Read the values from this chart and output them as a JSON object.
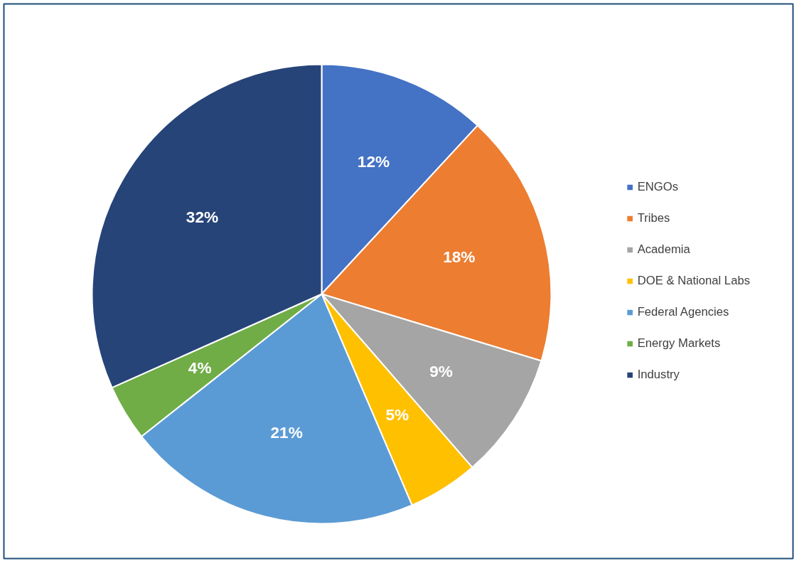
{
  "chart_data": {
    "type": "pie",
    "categories": [
      "ENGOs",
      "Tribes",
      "Academia",
      "DOE & National Labs",
      "Federal Agencies",
      "Energy Markets",
      "Industry"
    ],
    "values": [
      12,
      18,
      9,
      5,
      21,
      4,
      32
    ],
    "colors": [
      "#4472c4",
      "#ed7d31",
      "#a5a5a5",
      "#ffc000",
      "#5b9bd5",
      "#70ad47",
      "#264478"
    ],
    "value_labels": [
      "12%",
      "18%",
      "9%",
      "5%",
      "21%",
      "4%",
      "32%"
    ],
    "legend": "right"
  }
}
